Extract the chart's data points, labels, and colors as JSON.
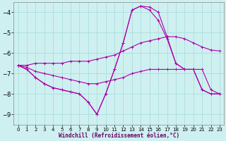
{
  "xlabel": "Windchill (Refroidissement éolien,°C)",
  "background_color": "#cff0f0",
  "grid_color": "#aadddd",
  "line_color": "#aa00aa",
  "x_ticks": [
    0,
    1,
    2,
    3,
    4,
    5,
    6,
    7,
    8,
    9,
    10,
    11,
    12,
    13,
    14,
    15,
    16,
    17,
    18,
    19,
    20,
    21,
    22,
    23
  ],
  "ylim": [
    -9.5,
    -3.5
  ],
  "xlim": [
    -0.5,
    23.5
  ],
  "y_ticks": [
    -9,
    -8,
    -7,
    -6,
    -5,
    -4
  ],
  "series": [
    {
      "x": [
        0,
        1,
        2,
        3,
        4,
        5,
        6,
        7,
        8,
        9,
        10,
        11,
        12,
        13,
        14,
        15,
        16,
        17,
        18,
        19,
        20,
        21,
        22,
        23
      ],
      "y": [
        -6.6,
        -6.6,
        -6.5,
        -6.5,
        -6.5,
        -6.5,
        -6.4,
        -6.4,
        -6.4,
        -6.3,
        -6.2,
        -6.1,
        -5.9,
        -5.7,
        -5.5,
        -5.4,
        -5.3,
        -5.2,
        -5.2,
        -5.3,
        -5.5,
        -5.7,
        -5.85,
        -5.9
      ]
    },
    {
      "x": [
        0,
        1,
        2,
        3,
        4,
        5,
        6,
        7,
        8,
        9,
        10,
        11,
        12,
        13,
        14,
        15,
        16,
        17,
        18,
        19,
        20,
        21,
        22,
        23
      ],
      "y": [
        -6.6,
        -6.7,
        -6.9,
        -7.0,
        -7.1,
        -7.2,
        -7.3,
        -7.4,
        -7.5,
        -7.5,
        -7.4,
        -7.3,
        -7.2,
        -7.0,
        -6.9,
        -6.8,
        -6.8,
        -6.8,
        -6.8,
        -6.8,
        -6.8,
        -6.8,
        -7.8,
        -8.0
      ]
    },
    {
      "x": [
        0,
        1,
        2,
        3,
        4,
        5,
        6,
        7,
        8,
        9,
        10,
        11,
        12,
        13,
        14,
        15,
        16,
        17,
        18,
        19,
        20,
        21,
        22,
        23
      ],
      "y": [
        -6.6,
        -6.8,
        -7.2,
        -7.5,
        -7.7,
        -7.8,
        -7.9,
        -8.0,
        -8.4,
        -9.0,
        -8.0,
        -6.8,
        -5.5,
        -3.9,
        -3.7,
        -3.9,
        -4.4,
        -5.3,
        -6.5,
        -6.8,
        -6.8,
        -7.8,
        -8.0,
        -8.0
      ]
    },
    {
      "x": [
        0,
        1,
        2,
        3,
        4,
        5,
        6,
        7,
        8,
        9,
        10,
        11,
        12,
        13,
        14,
        15,
        16,
        17,
        18,
        19,
        20,
        21,
        22,
        23
      ],
      "y": [
        -6.6,
        -6.8,
        -7.2,
        -7.5,
        -7.7,
        -7.8,
        -7.9,
        -8.0,
        -8.4,
        -9.0,
        -8.0,
        -6.8,
        -5.5,
        -3.9,
        -3.7,
        -3.75,
        -4.0,
        -5.2,
        -6.5,
        -6.8,
        -6.8,
        -7.8,
        -8.0,
        -8.0
      ]
    }
  ]
}
